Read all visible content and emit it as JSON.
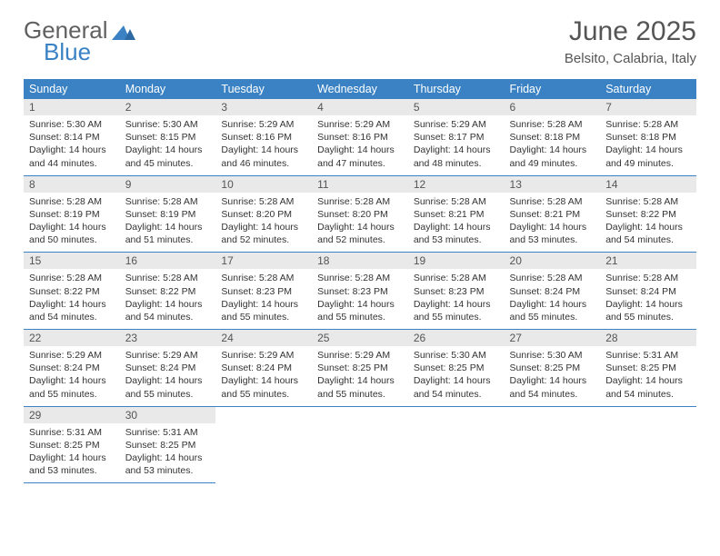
{
  "brand": {
    "word1": "General",
    "word2": "Blue"
  },
  "title": "June 2025",
  "location": "Belsito, Calabria, Italy",
  "colors": {
    "header_bg": "#3a82c4",
    "header_text": "#ffffff",
    "daynum_bg": "#e9e9e9",
    "body_text": "#333333",
    "title_text": "#555555",
    "row_border": "#3a82c4",
    "brand_gray": "#606060",
    "brand_blue": "#3a82c4"
  },
  "fonts": {
    "title_size_pt": 22,
    "location_size_pt": 11,
    "th_size_pt": 9,
    "cell_size_pt": 8
  },
  "weekdays": [
    "Sunday",
    "Monday",
    "Tuesday",
    "Wednesday",
    "Thursday",
    "Friday",
    "Saturday"
  ],
  "days": [
    {
      "n": "1",
      "sunrise": "5:30 AM",
      "sunset": "8:14 PM",
      "daylight": "14 hours and 44 minutes."
    },
    {
      "n": "2",
      "sunrise": "5:30 AM",
      "sunset": "8:15 PM",
      "daylight": "14 hours and 45 minutes."
    },
    {
      "n": "3",
      "sunrise": "5:29 AM",
      "sunset": "8:16 PM",
      "daylight": "14 hours and 46 minutes."
    },
    {
      "n": "4",
      "sunrise": "5:29 AM",
      "sunset": "8:16 PM",
      "daylight": "14 hours and 47 minutes."
    },
    {
      "n": "5",
      "sunrise": "5:29 AM",
      "sunset": "8:17 PM",
      "daylight": "14 hours and 48 minutes."
    },
    {
      "n": "6",
      "sunrise": "5:28 AM",
      "sunset": "8:18 PM",
      "daylight": "14 hours and 49 minutes."
    },
    {
      "n": "7",
      "sunrise": "5:28 AM",
      "sunset": "8:18 PM",
      "daylight": "14 hours and 49 minutes."
    },
    {
      "n": "8",
      "sunrise": "5:28 AM",
      "sunset": "8:19 PM",
      "daylight": "14 hours and 50 minutes."
    },
    {
      "n": "9",
      "sunrise": "5:28 AM",
      "sunset": "8:19 PM",
      "daylight": "14 hours and 51 minutes."
    },
    {
      "n": "10",
      "sunrise": "5:28 AM",
      "sunset": "8:20 PM",
      "daylight": "14 hours and 52 minutes."
    },
    {
      "n": "11",
      "sunrise": "5:28 AM",
      "sunset": "8:20 PM",
      "daylight": "14 hours and 52 minutes."
    },
    {
      "n": "12",
      "sunrise": "5:28 AM",
      "sunset": "8:21 PM",
      "daylight": "14 hours and 53 minutes."
    },
    {
      "n": "13",
      "sunrise": "5:28 AM",
      "sunset": "8:21 PM",
      "daylight": "14 hours and 53 minutes."
    },
    {
      "n": "14",
      "sunrise": "5:28 AM",
      "sunset": "8:22 PM",
      "daylight": "14 hours and 54 minutes."
    },
    {
      "n": "15",
      "sunrise": "5:28 AM",
      "sunset": "8:22 PM",
      "daylight": "14 hours and 54 minutes."
    },
    {
      "n": "16",
      "sunrise": "5:28 AM",
      "sunset": "8:22 PM",
      "daylight": "14 hours and 54 minutes."
    },
    {
      "n": "17",
      "sunrise": "5:28 AM",
      "sunset": "8:23 PM",
      "daylight": "14 hours and 55 minutes."
    },
    {
      "n": "18",
      "sunrise": "5:28 AM",
      "sunset": "8:23 PM",
      "daylight": "14 hours and 55 minutes."
    },
    {
      "n": "19",
      "sunrise": "5:28 AM",
      "sunset": "8:23 PM",
      "daylight": "14 hours and 55 minutes."
    },
    {
      "n": "20",
      "sunrise": "5:28 AM",
      "sunset": "8:24 PM",
      "daylight": "14 hours and 55 minutes."
    },
    {
      "n": "21",
      "sunrise": "5:28 AM",
      "sunset": "8:24 PM",
      "daylight": "14 hours and 55 minutes."
    },
    {
      "n": "22",
      "sunrise": "5:29 AM",
      "sunset": "8:24 PM",
      "daylight": "14 hours and 55 minutes."
    },
    {
      "n": "23",
      "sunrise": "5:29 AM",
      "sunset": "8:24 PM",
      "daylight": "14 hours and 55 minutes."
    },
    {
      "n": "24",
      "sunrise": "5:29 AM",
      "sunset": "8:24 PM",
      "daylight": "14 hours and 55 minutes."
    },
    {
      "n": "25",
      "sunrise": "5:29 AM",
      "sunset": "8:25 PM",
      "daylight": "14 hours and 55 minutes."
    },
    {
      "n": "26",
      "sunrise": "5:30 AM",
      "sunset": "8:25 PM",
      "daylight": "14 hours and 54 minutes."
    },
    {
      "n": "27",
      "sunrise": "5:30 AM",
      "sunset": "8:25 PM",
      "daylight": "14 hours and 54 minutes."
    },
    {
      "n": "28",
      "sunrise": "5:31 AM",
      "sunset": "8:25 PM",
      "daylight": "14 hours and 54 minutes."
    },
    {
      "n": "29",
      "sunrise": "5:31 AM",
      "sunset": "8:25 PM",
      "daylight": "14 hours and 53 minutes."
    },
    {
      "n": "30",
      "sunrise": "5:31 AM",
      "sunset": "8:25 PM",
      "daylight": "14 hours and 53 minutes."
    }
  ],
  "labels": {
    "sunrise": "Sunrise:",
    "sunset": "Sunset:",
    "daylight": "Daylight:"
  },
  "layout": {
    "first_weekday_offset": 0,
    "weeks": 5,
    "cols": 7
  }
}
